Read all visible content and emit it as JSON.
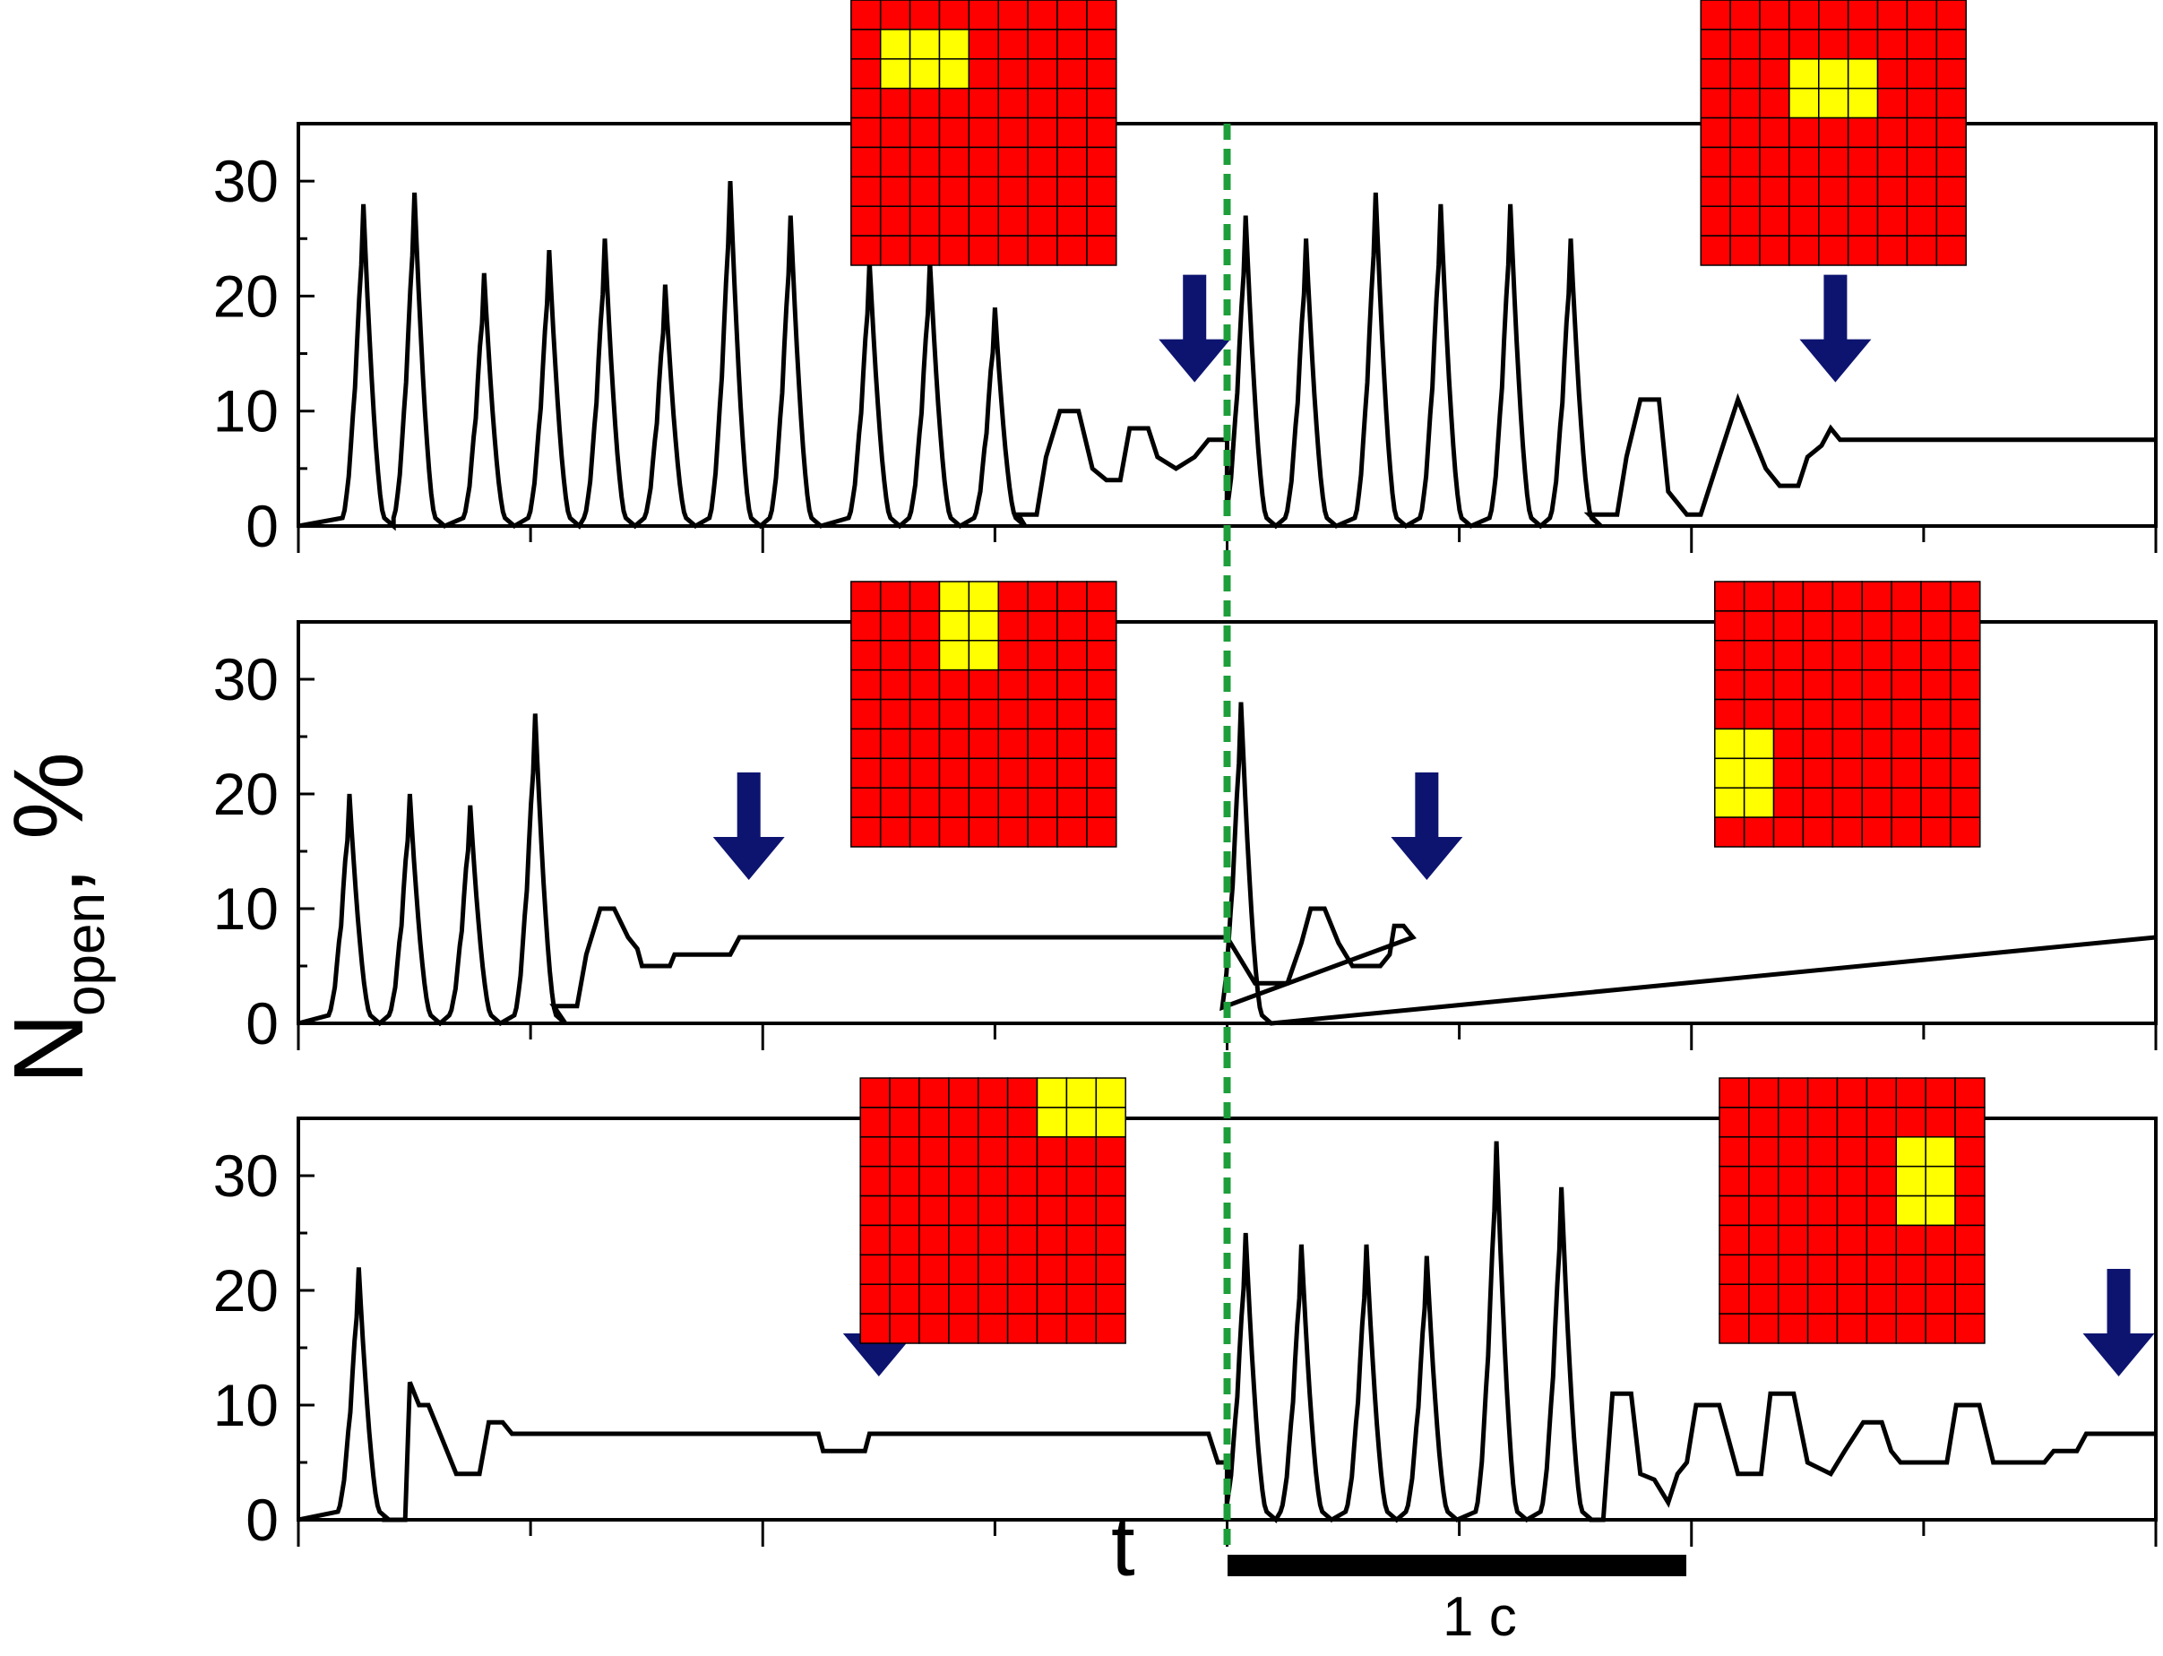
{
  "chart_data": {
    "type": "line",
    "title": "",
    "ylabel": {
      "symbol": "N",
      "subscript": "open",
      "unit": ", %"
    },
    "xlabel": "t",
    "ylim": [
      0,
      35
    ],
    "yticks": [
      0,
      10,
      20,
      30
    ],
    "xlim": [
      0,
      4.0
    ],
    "scale_bar": {
      "label": "1 c",
      "from": 2.0,
      "to": 3.0
    },
    "marker_line": {
      "x": 2.0,
      "style": "dashed",
      "color": "#1e9e3a"
    },
    "colors": {
      "trace": "#000000",
      "arrow": "#0d1470",
      "grid_cell": "#ff0000",
      "active_cell": "#ffff00",
      "marker": "#1e9e3a"
    },
    "panels": [
      {
        "name": "top",
        "peaks": [
          {
            "x": 0.14,
            "h": 28
          },
          {
            "x": 0.25,
            "h": 29
          },
          {
            "x": 0.4,
            "h": 22
          },
          {
            "x": 0.54,
            "h": 24
          },
          {
            "x": 0.66,
            "h": 25
          },
          {
            "x": 0.79,
            "h": 21
          },
          {
            "x": 0.93,
            "h": 30
          },
          {
            "x": 1.06,
            "h": 27
          },
          {
            "x": 1.23,
            "h": 23
          },
          {
            "x": 1.36,
            "h": 23
          },
          {
            "x": 1.5,
            "h": 19
          },
          {
            "x": 2.04,
            "h": 27
          },
          {
            "x": 2.17,
            "h": 25
          },
          {
            "x": 2.32,
            "h": 29
          },
          {
            "x": 2.46,
            "h": 28
          },
          {
            "x": 2.61,
            "h": 28
          },
          {
            "x": 2.74,
            "h": 25
          }
        ],
        "segments": [
          [
            1.55,
            1.0
          ],
          [
            1.59,
            1.0
          ],
          [
            1.61,
            6
          ],
          [
            1.64,
            10
          ],
          [
            1.68,
            10
          ],
          [
            1.71,
            5
          ],
          [
            1.74,
            4
          ],
          [
            1.77,
            4
          ],
          [
            1.79,
            8.5
          ],
          [
            1.83,
            8.5
          ],
          [
            1.85,
            6
          ],
          [
            1.89,
            5
          ],
          [
            1.93,
            6
          ],
          [
            1.96,
            7.5
          ],
          [
            2.0,
            7.5
          ],
          [
            2.78,
            1.0
          ],
          [
            2.84,
            1.0
          ],
          [
            2.86,
            6
          ],
          [
            2.89,
            11
          ],
          [
            2.93,
            11
          ],
          [
            2.95,
            3
          ],
          [
            2.99,
            1.0
          ],
          [
            3.02,
            1.0
          ],
          [
            3.06,
            6
          ],
          [
            3.1,
            11
          ],
          [
            3.13,
            8
          ],
          [
            3.16,
            5
          ],
          [
            3.19,
            3.5
          ],
          [
            3.23,
            3.5
          ],
          [
            3.25,
            6
          ],
          [
            3.28,
            7
          ],
          [
            3.3,
            8.5
          ],
          [
            3.32,
            7.5
          ],
          [
            4.0,
            7.5
          ]
        ],
        "arrows": [
          1.93,
          3.31
        ],
        "grids": [
          {
            "x": 1.36,
            "side": "top",
            "active_row": 1,
            "active_col": 1,
            "active_rows": 2,
            "active_cols": 3
          },
          {
            "x": 3.19,
            "side": "top",
            "active_row": 2,
            "active_col": 3,
            "active_rows": 2,
            "active_cols": 3
          }
        ]
      },
      {
        "name": "middle",
        "peaks": [
          {
            "x": 0.11,
            "h": 20
          },
          {
            "x": 0.24,
            "h": 20
          },
          {
            "x": 0.37,
            "h": 19
          },
          {
            "x": 0.51,
            "h": 27
          },
          {
            "x": 2.03,
            "h": 28
          }
        ],
        "segments": [
          [
            0.55,
            1.5
          ],
          [
            0.6,
            1.5
          ],
          [
            0.62,
            6
          ],
          [
            0.65,
            10
          ],
          [
            0.68,
            10
          ],
          [
            0.71,
            7.5
          ],
          [
            0.73,
            6.5
          ],
          [
            0.74,
            5
          ],
          [
            0.8,
            5
          ],
          [
            0.81,
            6
          ],
          [
            0.93,
            6
          ],
          [
            0.95,
            7.5
          ],
          [
            2.0,
            7.5
          ],
          [
            2.06,
            3.5
          ],
          [
            2.13,
            3.5
          ],
          [
            2.16,
            7
          ],
          [
            2.18,
            10
          ],
          [
            2.21,
            10
          ],
          [
            2.24,
            7
          ],
          [
            2.27,
            5
          ],
          [
            2.33,
            5
          ],
          [
            2.35,
            6
          ],
          [
            2.36,
            8.5
          ],
          [
            2.38,
            8.5
          ],
          [
            2.4,
            7.5
          ],
          [
            4.0,
            7.5
          ]
        ],
        "arrows": [
          0.97,
          2.43
        ],
        "grids": [
          {
            "x": 1.36,
            "side": "top",
            "active_row": 0,
            "active_col": 3,
            "active_rows": 3,
            "active_cols": 2
          },
          {
            "x": 3.22,
            "side": "top",
            "active_row": 5,
            "active_col": 0,
            "active_rows": 3,
            "active_cols": 2
          }
        ]
      },
      {
        "name": "bottom",
        "peaks": [
          {
            "x": 0.13,
            "h": 22
          },
          {
            "x": 2.04,
            "h": 25
          },
          {
            "x": 2.16,
            "h": 24
          },
          {
            "x": 2.3,
            "h": 24
          },
          {
            "x": 2.43,
            "h": 23
          },
          {
            "x": 2.58,
            "h": 33
          },
          {
            "x": 2.72,
            "h": 29
          }
        ],
        "segments": [
          [
            0.18,
            0
          ],
          [
            0.23,
            0
          ],
          [
            0.24,
            12
          ],
          [
            0.26,
            10
          ],
          [
            0.28,
            10
          ],
          [
            0.31,
            7
          ],
          [
            0.34,
            4
          ],
          [
            0.39,
            4
          ],
          [
            0.41,
            8.5
          ],
          [
            0.44,
            8.5
          ],
          [
            0.46,
            7.5
          ],
          [
            1.12,
            7.5
          ],
          [
            1.13,
            6
          ],
          [
            1.22,
            6
          ],
          [
            1.23,
            7.5
          ],
          [
            1.96,
            7.5
          ],
          [
            1.98,
            5
          ],
          [
            2.0,
            5
          ],
          [
            2.78,
            0
          ],
          [
            2.81,
            0
          ],
          [
            2.83,
            11
          ],
          [
            2.87,
            11
          ],
          [
            2.89,
            4
          ],
          [
            2.92,
            3.5
          ],
          [
            2.95,
            1.5
          ],
          [
            2.97,
            4
          ],
          [
            2.99,
            5
          ],
          [
            3.01,
            10
          ],
          [
            3.06,
            10
          ],
          [
            3.1,
            4
          ],
          [
            3.15,
            4
          ],
          [
            3.17,
            11
          ],
          [
            3.22,
            11
          ],
          [
            3.25,
            5
          ],
          [
            3.3,
            4
          ],
          [
            3.33,
            6
          ],
          [
            3.37,
            8.5
          ],
          [
            3.41,
            8.5
          ],
          [
            3.43,
            6
          ],
          [
            3.45,
            5
          ],
          [
            3.55,
            5
          ],
          [
            3.57,
            10
          ],
          [
            3.62,
            10
          ],
          [
            3.65,
            5
          ],
          [
            3.76,
            5
          ],
          [
            3.78,
            6
          ],
          [
            3.83,
            6
          ],
          [
            3.85,
            7.5
          ],
          [
            4.0,
            7.5
          ]
        ],
        "arrows": [
          1.25,
          3.92
        ],
        "grids": [
          {
            "x": 1.38,
            "side": "top",
            "active_row": 0,
            "active_col": 6,
            "active_rows": 2,
            "active_cols": 3
          },
          {
            "x": 3.23,
            "side": "top",
            "active_row": 2,
            "active_col": 6,
            "active_rows": 3,
            "active_cols": 2
          }
        ]
      }
    ]
  }
}
